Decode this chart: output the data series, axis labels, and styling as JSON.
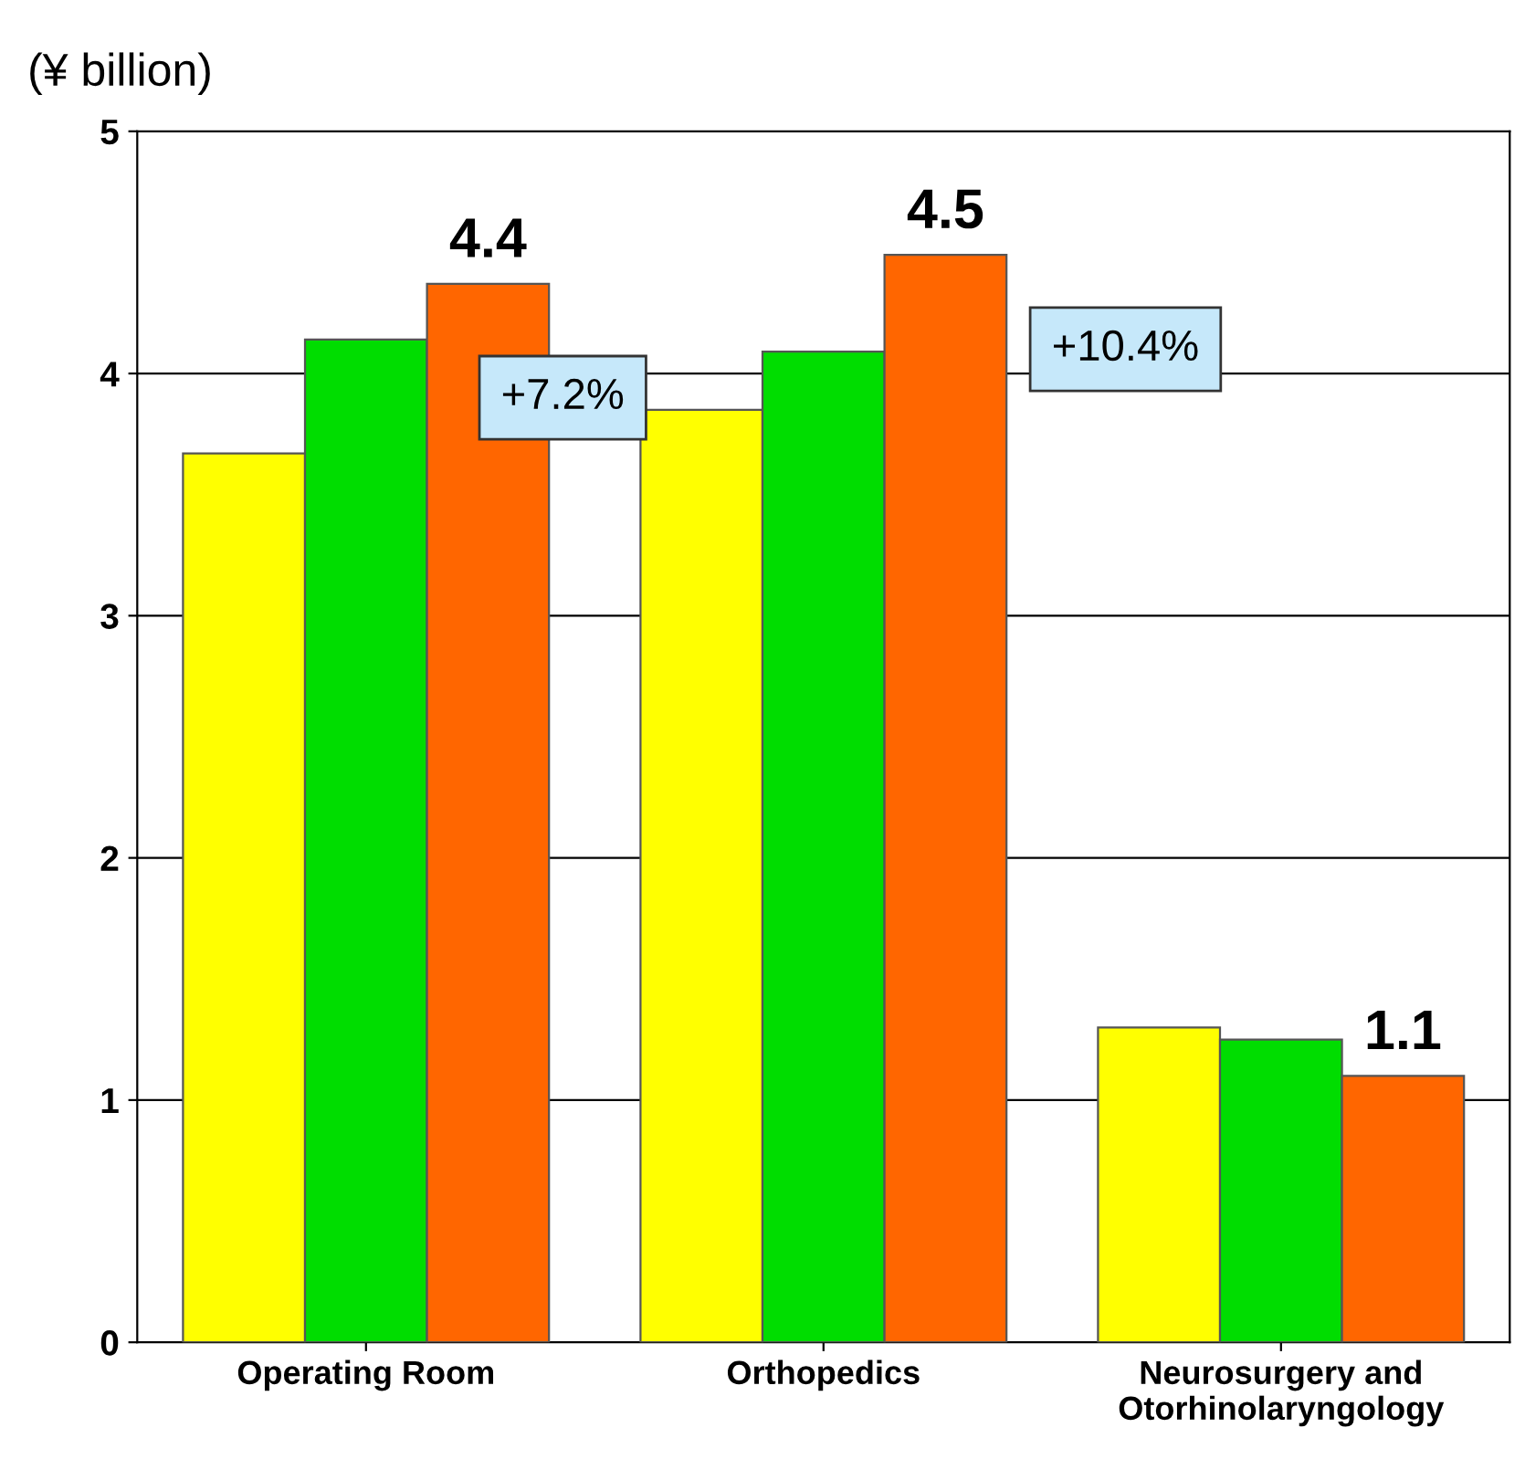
{
  "chart_data": {
    "type": "bar",
    "ylabel": "(¥ billion)",
    "categories": [
      "Operating Room",
      "Orthopedics",
      "Neurosurgery and\nOtorhinolaryngology"
    ],
    "series": [
      {
        "color": "#ffff00",
        "values": [
          3.67,
          3.85,
          1.3
        ]
      },
      {
        "color": "#00dd00",
        "values": [
          4.14,
          4.09,
          1.25
        ]
      },
      {
        "color": "#ff6600",
        "values": [
          4.37,
          4.49,
          1.1
        ],
        "value_labels": [
          "4.4",
          "4.5",
          "1.1"
        ]
      }
    ],
    "ylim": [
      0,
      5
    ],
    "yticks": [
      0,
      1,
      2,
      3,
      4,
      5
    ],
    "grid": "y",
    "legend": false,
    "annotations": [
      "+7.2%",
      "+10.4%"
    ]
  }
}
